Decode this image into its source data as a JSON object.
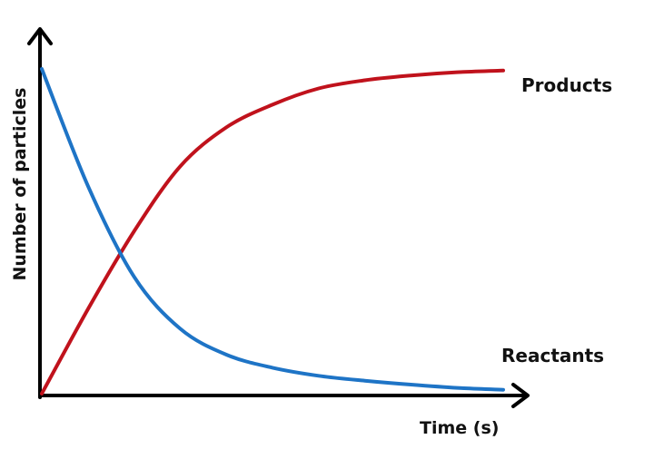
{
  "chart_data": {
    "type": "line",
    "title": "",
    "xlabel": "Time (s)",
    "ylabel": "Number of particles",
    "grid": false,
    "axis_ticks": "none",
    "series": [
      {
        "name": "Products",
        "color": "#c0121c",
        "x": [
          0,
          0.1,
          0.2,
          0.3,
          0.4,
          0.5,
          0.6,
          0.7,
          0.8,
          0.9,
          1.0
        ],
        "y": [
          0.0,
          0.26,
          0.5,
          0.7,
          0.82,
          0.89,
          0.94,
          0.965,
          0.98,
          0.99,
          0.995
        ]
      },
      {
        "name": "Reactants",
        "color": "#1e74c6",
        "x": [
          0,
          0.1,
          0.2,
          0.3,
          0.4,
          0.5,
          0.6,
          0.7,
          0.8,
          0.9,
          1.0
        ],
        "y": [
          1.0,
          0.64,
          0.36,
          0.2,
          0.12,
          0.08,
          0.055,
          0.04,
          0.028,
          0.018,
          0.012
        ]
      }
    ]
  }
}
